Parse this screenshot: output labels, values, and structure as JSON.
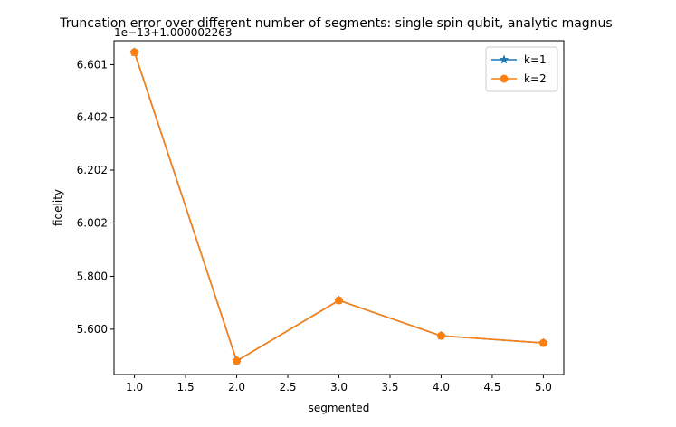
{
  "chart_data": {
    "type": "line",
    "title": "Truncation error over different number of segments: single spin qubit, analytic magnus",
    "xlabel": "segmented",
    "ylabel": "fidelity",
    "offset_text": "1e−13+1.000002263",
    "x": [
      1.0,
      2.0,
      3.0,
      4.0,
      5.0
    ],
    "x_ticks": [
      1.0,
      1.5,
      2.0,
      2.5,
      3.0,
      3.5,
      4.0,
      4.5,
      5.0
    ],
    "x_tick_labels": [
      "1.0",
      "1.5",
      "2.0",
      "2.5",
      "3.0",
      "3.5",
      "4.0",
      "4.5",
      "5.0"
    ],
    "xlim": [
      0.8,
      5.2
    ],
    "y_ticks": [
      5.6,
      5.8,
      6.002,
      6.202,
      6.402,
      6.601
    ],
    "y_tick_labels": [
      "5.600",
      "5.800",
      "6.002",
      "6.202",
      "6.402",
      "6.601"
    ],
    "ylim": [
      5.4285,
      6.6915
    ],
    "series": [
      {
        "name": "k=1",
        "marker": "star",
        "color": "#1f77b4",
        "values": [
          6.648,
          5.48,
          5.709,
          5.575,
          5.548
        ]
      },
      {
        "name": "k=2",
        "marker": "circle",
        "color": "#ff7f0e",
        "values": [
          6.648,
          5.48,
          5.709,
          5.575,
          5.548
        ]
      }
    ],
    "legend_position": "top-right",
    "grid": false
  }
}
